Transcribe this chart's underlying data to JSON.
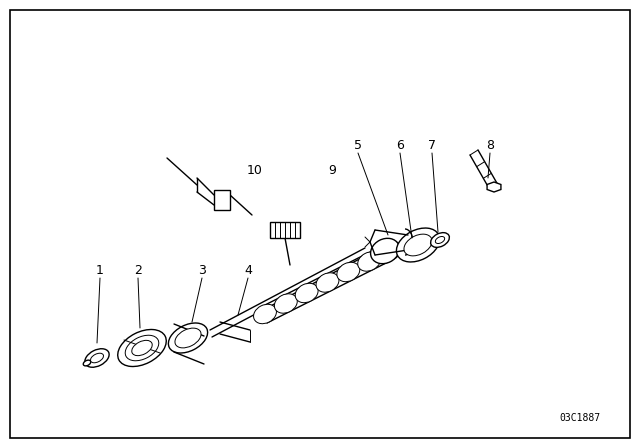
{
  "background_color": "#ffffff",
  "diagram_color": "#000000",
  "watermark": "03C1887",
  "label_fontsize": 9,
  "fig_width": 6.4,
  "fig_height": 4.48,
  "dpi": 100
}
